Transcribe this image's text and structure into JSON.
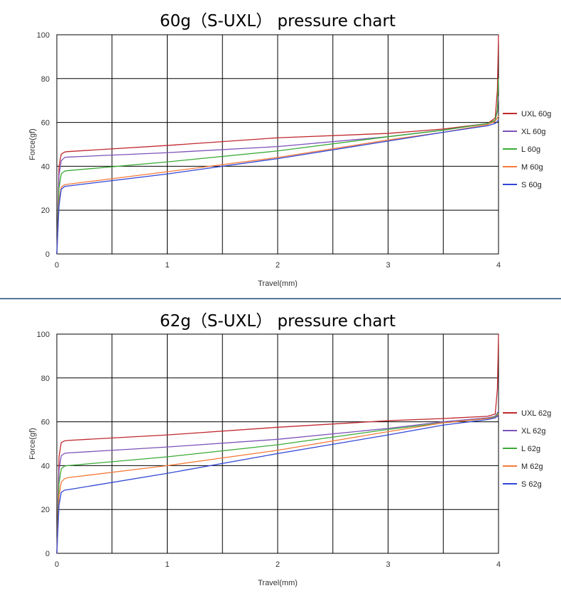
{
  "colors": {
    "UXL": "#c0282d",
    "XL": "#7b52b9",
    "L": "#3aaa35",
    "M": "#f47a3a",
    "S": "#2f46d6"
  },
  "chart_data": [
    {
      "type": "line",
      "title": "60g（S-UXL） pressure chart",
      "xlabel": "Travel(mm)",
      "ylabel": "Force(gf)",
      "xlim": [
        0,
        4
      ],
      "ylim": [
        0,
        100
      ],
      "xticks": [
        0,
        1,
        2,
        3,
        4
      ],
      "yticks": [
        0,
        20,
        40,
        60,
        80,
        100
      ],
      "grid": true,
      "legend_position": "right",
      "series": [
        {
          "name": "UXL 60g",
          "key": "UXL",
          "x": [
            0,
            0.02,
            0.04,
            0.07,
            0.1,
            1,
            2,
            3,
            3.5,
            3.9,
            3.97,
            3.99,
            4.0
          ],
          "y": [
            0,
            40,
            45.5,
            46.5,
            46.7,
            49.5,
            53,
            55,
            57,
            59.5,
            62,
            75,
            100
          ]
        },
        {
          "name": "XL 60g",
          "key": "XL",
          "x": [
            0,
            0.02,
            0.04,
            0.07,
            0.1,
            1,
            2,
            3,
            3.5,
            3.9,
            3.97,
            3.99,
            4.0
          ],
          "y": [
            0,
            36,
            42.5,
            44,
            44.2,
            46.2,
            49,
            53.5,
            56.5,
            59.5,
            61,
            65,
            72
          ]
        },
        {
          "name": "L 60g",
          "key": "L",
          "x": [
            0,
            0.02,
            0.04,
            0.07,
            0.1,
            1,
            2,
            3,
            3.5,
            3.9,
            3.97,
            3.99,
            4.0
          ],
          "y": [
            0,
            30,
            36.5,
            37.8,
            38,
            42,
            47,
            53.5,
            56.5,
            59.5,
            61,
            66,
            80
          ]
        },
        {
          "name": "M 60g",
          "key": "M",
          "x": [
            0,
            0.02,
            0.04,
            0.07,
            0.1,
            1,
            2,
            3,
            3.5,
            3.9,
            3.97,
            3.99,
            4.0
          ],
          "y": [
            0,
            24,
            30.5,
            31.6,
            31.8,
            37.5,
            44,
            52,
            55.5,
            59,
            60.5,
            62,
            63
          ]
        },
        {
          "name": "S 60g",
          "key": "S",
          "x": [
            0,
            0.02,
            0.04,
            0.07,
            0.1,
            1,
            2,
            3,
            3.5,
            3.9,
            3.97,
            3.99,
            4.0
          ],
          "y": [
            0,
            22,
            29.5,
            30.8,
            31,
            36.5,
            43.5,
            51.5,
            55.5,
            58.5,
            59.5,
            60.5,
            61
          ]
        }
      ]
    },
    {
      "type": "line",
      "title": "62g（S-UXL） pressure chart",
      "xlabel": "Travel(mm)",
      "ylabel": "Force(gf)",
      "xlim": [
        0,
        4
      ],
      "ylim": [
        0,
        100
      ],
      "xticks": [
        0,
        1,
        2,
        3,
        4
      ],
      "yticks": [
        0,
        20,
        40,
        60,
        80,
        100
      ],
      "grid": true,
      "legend_position": "right",
      "series": [
        {
          "name": "UXL 62g",
          "key": "UXL",
          "x": [
            0,
            0.02,
            0.04,
            0.07,
            0.1,
            1,
            2,
            3,
            3.5,
            3.9,
            3.97,
            3.99,
            4.0
          ],
          "y": [
            0,
            44,
            50.5,
            51.3,
            51.5,
            54,
            57.5,
            60.5,
            61.5,
            62.5,
            63.5,
            75,
            100
          ]
        },
        {
          "name": "XL 62g",
          "key": "XL",
          "x": [
            0,
            0.02,
            0.04,
            0.07,
            0.1,
            1,
            2,
            3,
            3.5,
            3.9,
            3.97,
            3.99,
            4.0
          ],
          "y": [
            0,
            38,
            44.5,
            45.6,
            45.8,
            48.5,
            52,
            57,
            60,
            61.8,
            62.5,
            64,
            65
          ]
        },
        {
          "name": "L 62g",
          "key": "L",
          "x": [
            0,
            0.02,
            0.04,
            0.07,
            0.1,
            1,
            2,
            3,
            3.5,
            3.9,
            3.97,
            3.99,
            4.0
          ],
          "y": [
            0,
            32,
            38.5,
            39.8,
            40,
            44,
            49.5,
            56.5,
            59.5,
            61.5,
            62.3,
            63.5,
            64
          ]
        },
        {
          "name": "M 62g",
          "key": "M",
          "x": [
            0,
            0.02,
            0.04,
            0.07,
            0.1,
            1,
            2,
            3,
            3.5,
            3.9,
            3.97,
            3.99,
            4.0
          ],
          "y": [
            0,
            26,
            32.5,
            34,
            34.5,
            40,
            47,
            55.5,
            59.5,
            61.5,
            62,
            63,
            63.5
          ]
        },
        {
          "name": "S 62g",
          "key": "S",
          "x": [
            0,
            0.02,
            0.04,
            0.07,
            0.1,
            1,
            2,
            3,
            3.5,
            3.9,
            3.97,
            3.99,
            4.0
          ],
          "y": [
            0,
            22,
            27.8,
            28.8,
            29,
            36.5,
            45.5,
            54,
            58.5,
            61,
            61.8,
            62.5,
            63
          ]
        }
      ]
    }
  ]
}
